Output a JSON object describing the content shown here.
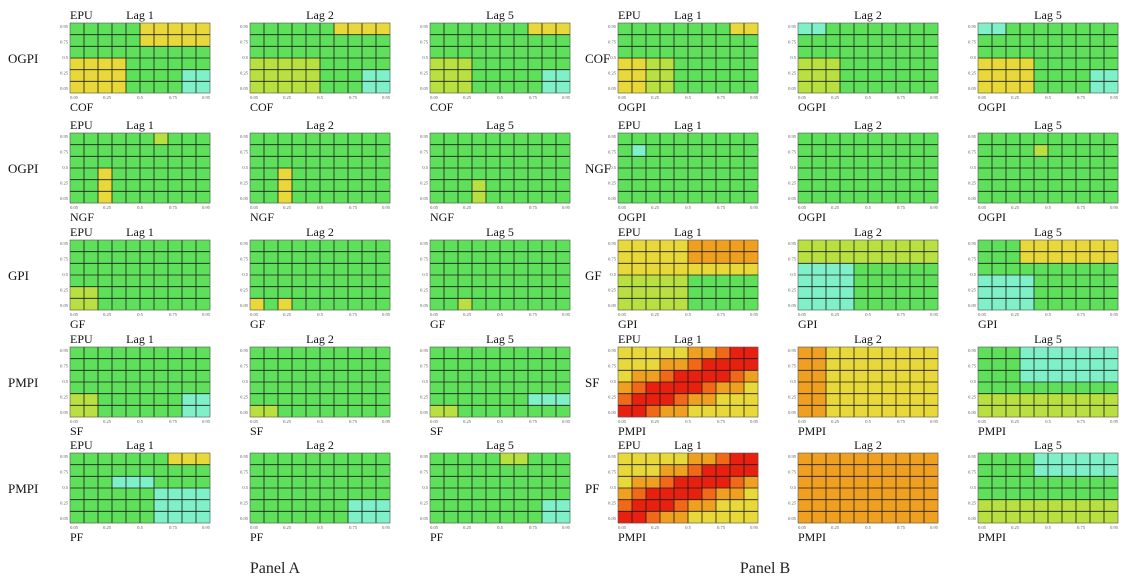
{
  "figure": {
    "panels": [
      {
        "label": "Panel A",
        "rows": [
          {
            "row_label": "OGPI",
            "x_label": "COF"
          },
          {
            "row_label": "OGPI",
            "x_label": "NGF"
          },
          {
            "row_label": "GPI",
            "x_label": "GF"
          },
          {
            "row_label": "PMPI",
            "x_label": "SF"
          },
          {
            "row_label": "PMPI",
            "x_label": "PF"
          }
        ]
      },
      {
        "label": "Panel B",
        "rows": [
          {
            "row_label": "COF",
            "x_label": "OGPI"
          },
          {
            "row_label": "NGF",
            "x_label": "OGPI"
          },
          {
            "row_label": "GF",
            "x_label": "GPI"
          },
          {
            "row_label": "SF",
            "x_label": "PMPI"
          },
          {
            "row_label": "PF",
            "x_label": "PMPI"
          }
        ]
      }
    ],
    "corner_label": "EPU",
    "lags": [
      "Lag 1",
      "Lag 2",
      "Lag 5"
    ],
    "y_ticks": [
      "0.95",
      "0.75",
      "0.5",
      "0.25",
      "0.05"
    ],
    "x_ticks": [
      "0.05",
      "0.25",
      "0.5",
      "0.75",
      "0.95"
    ]
  },
  "chart_data": {
    "type": "heatmap",
    "grid": {
      "rows": 6,
      "cols": 10
    },
    "colors": {
      "green": "#5fe05a",
      "cyan": "#7ff0c8",
      "yellow": "#e8d83a",
      "orange": "#f0a020",
      "red": "#e82010",
      "grid_line": "#1a1a1a"
    },
    "patterns": {
      "Panel A": [
        "A_cof",
        "A_ngf",
        "A_gf",
        "A_sf",
        "A_pf"
      ],
      "Panel B": [
        "B_cof",
        "B_ngf",
        "B_gf",
        "B_sf",
        "B_pf"
      ]
    }
  }
}
